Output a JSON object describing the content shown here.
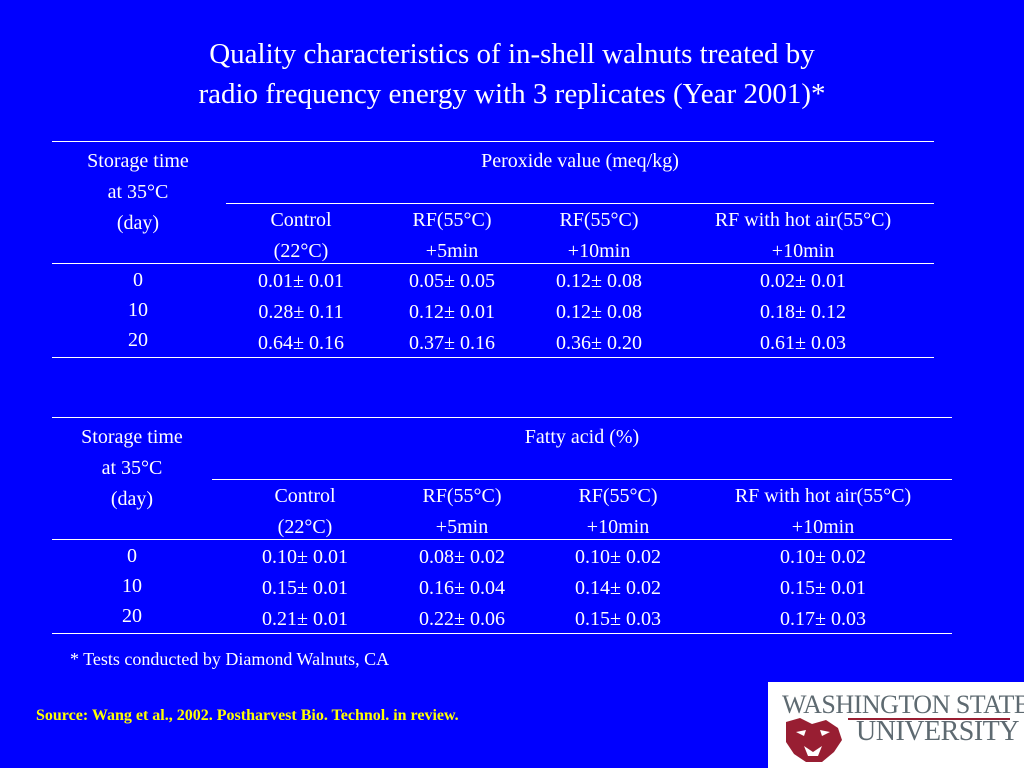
{
  "title": {
    "line1": "Quality characteristics of in-shell walnuts treated by",
    "line2": "radio frequency energy with 3 replicates (Year 2001)*"
  },
  "tables": [
    {
      "row_header": [
        "Storage time",
        "at 35°C",
        "(day)"
      ],
      "group_header": "Peroxide value (meq/kg)",
      "columns": [
        [
          "Control",
          "(22°C)"
        ],
        [
          "RF(55°C)",
          "+5min"
        ],
        [
          "RF(55°C)",
          "+10min"
        ],
        [
          "RF with hot air(55°C)",
          "+10min"
        ]
      ],
      "days": [
        "0",
        "10",
        "20"
      ],
      "rows": [
        [
          "0.01± 0.01",
          "0.05± 0.05",
          "0.12± 0.08",
          "0.02± 0.01"
        ],
        [
          "0.28± 0.11",
          "0.12± 0.01",
          "0.12± 0.08",
          "0.18± 0.12"
        ],
        [
          "0.64± 0.16",
          "0.37± 0.16",
          "0.36± 0.20",
          "0.61± 0.03"
        ]
      ]
    },
    {
      "row_header": [
        "Storage time",
        "at 35°C",
        "(day)"
      ],
      "group_header": "Fatty acid (%)",
      "columns": [
        [
          "Control",
          "(22°C)"
        ],
        [
          "RF(55°C)",
          "+5min"
        ],
        [
          "RF(55°C)",
          "+10min"
        ],
        [
          "RF with hot air(55°C)",
          "+10min"
        ]
      ],
      "days": [
        "0",
        "10",
        "20"
      ],
      "rows": [
        [
          "0.10± 0.01",
          "0.08± 0.02",
          "0.10± 0.02",
          "0.10± 0.02"
        ],
        [
          "0.15± 0.01",
          "0.16± 0.04",
          "0.14± 0.02",
          "0.15± 0.01"
        ],
        [
          "0.21± 0.01",
          "0.22± 0.06",
          "0.15± 0.03",
          "0.17± 0.03"
        ]
      ]
    }
  ],
  "footnote": "* Tests conducted by Diamond Walnuts, CA",
  "source": "Source: Wang et al., 2002. Postharvest Bio. Technol.  in review.",
  "logo": {
    "line1": "WASHINGTON STATE",
    "line2": "UNIVERSITY",
    "icon": "wsu-cougar-head-icon",
    "colors": {
      "crimson": "#981e32",
      "gray": "#5e6a71"
    }
  },
  "colors": {
    "background": "#0000ff",
    "text": "#ffffff",
    "source": "#ffff00"
  }
}
